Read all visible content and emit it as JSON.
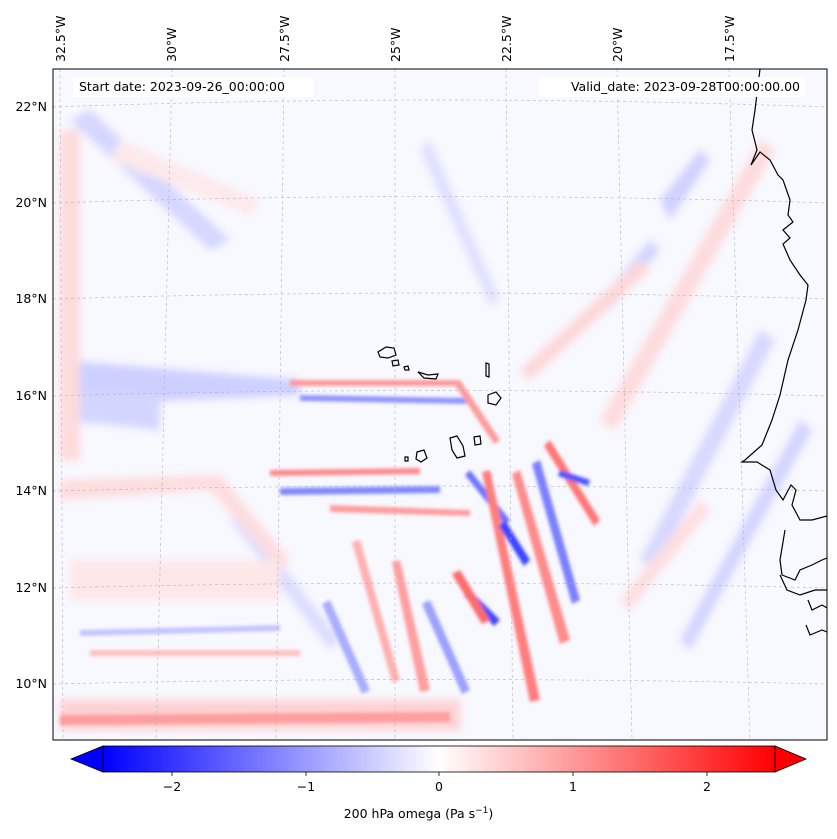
{
  "map": {
    "start_date": "Start date: 2023-09-26_00:00:00",
    "valid_date": "Valid_date: 2023-09-28T00:00:00.00",
    "longitude_labels": [
      "32.5°W",
      "30°W",
      "27.5°W",
      "25°W",
      "22.5°W",
      "20°W",
      "17.5°W"
    ],
    "latitude_labels": [
      "22°N",
      "20°N",
      "18°N",
      "16°N",
      "14°N",
      "12°N",
      "10°N"
    ],
    "region": {
      "lon_range": [
        -33.0,
        -15.5
      ],
      "lat_range": [
        8.9,
        22.8
      ]
    },
    "field": "200 hPa omega",
    "colors": {
      "negative": "#0000ff",
      "zero": "#ffffff",
      "positive": "#ff0000",
      "coast": "#000000",
      "grid": "#b0b0b0"
    }
  },
  "colorbar": {
    "label_prefix": "200 hPa omega (Pa s",
    "label_exponent": "−1",
    "label_suffix": ")",
    "ticks": [
      "−2",
      "−1",
      "0",
      "1",
      "2"
    ],
    "range": [
      -2.7,
      2.7
    ]
  }
}
